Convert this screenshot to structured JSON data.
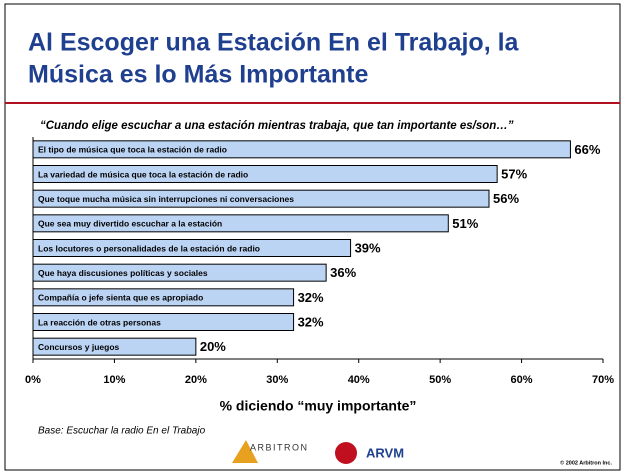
{
  "chart_data": {
    "type": "hbar",
    "title": [
      "Al Escoger una Estación En el Trabajo, la",
      "Música es lo Más Importante"
    ],
    "subtitle": "“Cuando elige escuchar a una estación mientras trabaja, que tan importante es/son…”",
    "categories": [
      "El tipo de música que toca la estación de radio",
      "La variedad de música que toca la estación de radio",
      "Que toque mucha música sin interrupciones ni conversaciones",
      "Que sea muy divertido escuchar a la estación",
      "Los locutores o personalidades de la estación de radio",
      "Que haya discusiones políticas y sociales",
      "Compañía o jefe sienta que es apropiado",
      "La reacción de otras personas",
      "Concursos y juegos"
    ],
    "values": [
      66,
      57,
      56,
      51,
      39,
      36,
      32,
      32,
      20
    ],
    "value_labels": [
      "66%",
      "57%",
      "56%",
      "51%",
      "39%",
      "36%",
      "32%",
      "32%",
      "20%"
    ],
    "color": "#bcd4f4",
    "xlim": [
      0,
      70
    ],
    "xticks": [
      {
        "value": 0,
        "label": "0%"
      },
      {
        "value": 10,
        "label": "10%"
      },
      {
        "value": 20,
        "label": "20%"
      },
      {
        "value": 30,
        "label": "30%"
      },
      {
        "value": 40,
        "label": "40%"
      },
      {
        "value": 50,
        "label": "50%"
      },
      {
        "value": 60,
        "label": "60%"
      },
      {
        "value": 70,
        "label": "70%"
      }
    ],
    "xlabel": "% diciendo “muy importante”",
    "footnote": "Base: Escuchar la radio En el Trabajo",
    "logos": [
      "ARBITRON",
      "ARVM"
    ],
    "copyright": "© 2002 Arbitron Inc."
  }
}
